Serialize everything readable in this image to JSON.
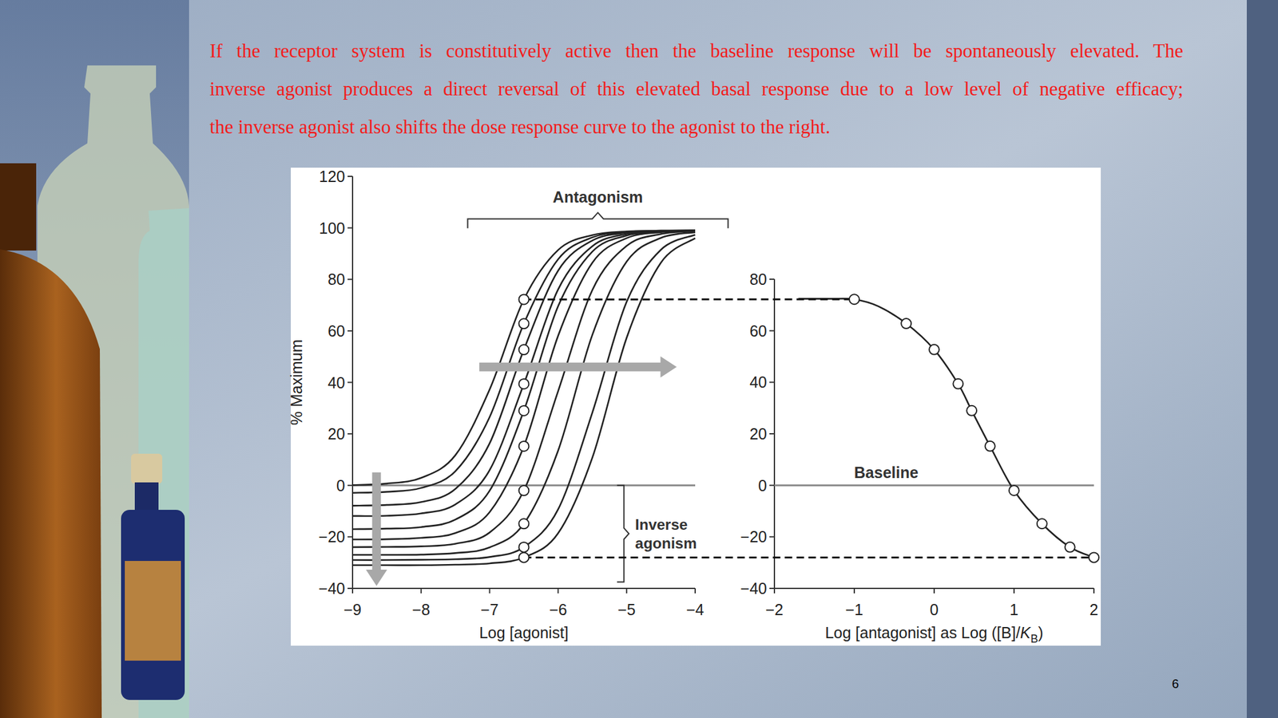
{
  "slide": {
    "text_lines": [
      "If the receptor system is constitutively active then the baseline response will be spontaneously elevated. The",
      "inverse agonist produces a direct reversal of this elevated basal response due to a low level of negative efficacy;",
      "the inverse agonist also shifts the dose response curve to the agonist to the right."
    ],
    "page_number": "6"
  },
  "chart_data": [
    {
      "type": "line",
      "xlabel": "Log [agonist]",
      "ylabel": "% Maximum",
      "xlim": [
        -9,
        -4
      ],
      "ylim": [
        -40,
        120
      ],
      "xticks": [
        {
          "value": -9,
          "label": "−9"
        },
        {
          "value": -8,
          "label": "−8"
        },
        {
          "value": -7,
          "label": "−7"
        },
        {
          "value": -6,
          "label": "−6"
        },
        {
          "value": -5,
          "label": "−5"
        },
        {
          "value": -4,
          "label": "−4"
        }
      ],
      "yticks": [
        {
          "value": -40,
          "label": "−40"
        },
        {
          "value": -20,
          "label": "−20"
        },
        0,
        20,
        40,
        60,
        80,
        100,
        120
      ],
      "grid": false,
      "color": "#222222",
      "marker": "circle",
      "marker_x": -6.5,
      "x": [
        -9,
        -8.5,
        -8,
        -7.5,
        -7,
        -6.5,
        -6,
        -5.5,
        -5,
        -4.5,
        -4
      ],
      "series": [
        {
          "values": [
            0.1,
            0.7,
            2.9,
            11.7,
            37.2,
            72.2,
            91.4,
            97.2,
            98.6,
            98.9,
            99.0
          ]
        },
        {
          "values": [
            -2.9,
            -2.5,
            -1.0,
            5.5,
            26.5,
            62.8,
            87.8,
            96.3,
            98.4,
            98.9,
            99.0
          ]
        },
        {
          "values": [
            -7.9,
            -7.6,
            -6.5,
            -1.4,
            16.3,
            52.7,
            83.4,
            95.1,
            98.1,
            98.8,
            99.0
          ]
        },
        {
          "values": [
            -11.9,
            -11.8,
            -10.9,
            -7.4,
            5.9,
            39.4,
            76.1,
            92.9,
            97.6,
            98.7,
            98.9
          ]
        },
        {
          "values": [
            -17.0,
            -16.8,
            -16.2,
            -13.3,
            -2.1,
            29.0,
            69.6,
            90.8,
            97.0,
            98.6,
            98.9
          ]
        },
        {
          "values": [
            -21.0,
            -20.9,
            -20.4,
            -18.5,
            -10.4,
            15.2,
            58.1,
            86.5,
            96.0,
            98.3,
            98.8
          ]
        },
        {
          "values": [
            -24.0,
            -23.9,
            -23.7,
            -22.7,
            -18.3,
            -2.0,
            36.6,
            75.9,
            93.0,
            97.6,
            98.7
          ]
        },
        {
          "values": [
            -27.0,
            -27.0,
            -26.9,
            -26.3,
            -24.1,
            -14.9,
            13.5,
            58.5,
            86.9,
            96.1,
            98.3
          ]
        },
        {
          "values": [
            -29.0,
            -29.0,
            -28.9,
            -28.7,
            -27.8,
            -24.0,
            -9.3,
            28.3,
            71.3,
            91.5,
            97.3
          ]
        },
        {
          "values": [
            -31.0,
            -31.0,
            -31.0,
            -30.8,
            -30.3,
            -28.0,
            -18.6,
            10.8,
            57.3,
            86.5,
            96.0
          ]
        }
      ],
      "baseline": {
        "value": 0
      },
      "brackets": [
        {
          "text": "Antagonism",
          "x": [
            -7.32,
            -3.52
          ],
          "y": 103.5
        },
        {
          "text": "Inverse agonism",
          "x": -5.04,
          "y": [
            0,
            -37.5
          ]
        }
      ],
      "arrows": [
        {
          "x": [
            -7.15,
            -4.27
          ],
          "y": [
            46,
            46
          ]
        },
        {
          "x": [
            -8.65,
            -8.65
          ],
          "y": [
            5,
            -39
          ]
        }
      ]
    },
    {
      "type": "line",
      "xlabel": "Log [antagonist] as Log ([B]/KB)",
      "xlim": [
        -2,
        2
      ],
      "ylim": [
        -40,
        80
      ],
      "xticks": [
        {
          "value": -2,
          "label": "−2"
        },
        {
          "value": -1,
          "label": "−1"
        },
        0,
        1,
        2
      ],
      "yticks": [
        {
          "value": -40,
          "label": "−40"
        },
        {
          "value": -20,
          "label": "−20"
        },
        0,
        20,
        40,
        60,
        80
      ],
      "grid": false,
      "color": "#222222",
      "series": [
        {
          "type": "line",
          "marker": "none",
          "x": [
            -1.7,
            -1.3,
            -1,
            -0.7,
            -0.35,
            0,
            0.3,
            0.47,
            0.7,
            1,
            1.35,
            1.7,
            2
          ],
          "values": [
            72.4,
            72.4,
            72.2,
            69.5,
            62.8,
            52.7,
            39.4,
            29.0,
            15.2,
            -2.0,
            -14.9,
            -24.0,
            -28.0
          ]
        },
        {
          "type": "scatter",
          "marker": "circle",
          "x": [
            -1,
            -0.35,
            0,
            0.3,
            0.47,
            0.7,
            1,
            1.35,
            1.7,
            2
          ],
          "values": [
            72.2,
            62.8,
            52.7,
            39.4,
            29.0,
            15.2,
            -2.0,
            -14.9,
            -24.0,
            -28.0
          ]
        }
      ],
      "baseline": {
        "value": 0,
        "label": "Baseline"
      }
    }
  ]
}
